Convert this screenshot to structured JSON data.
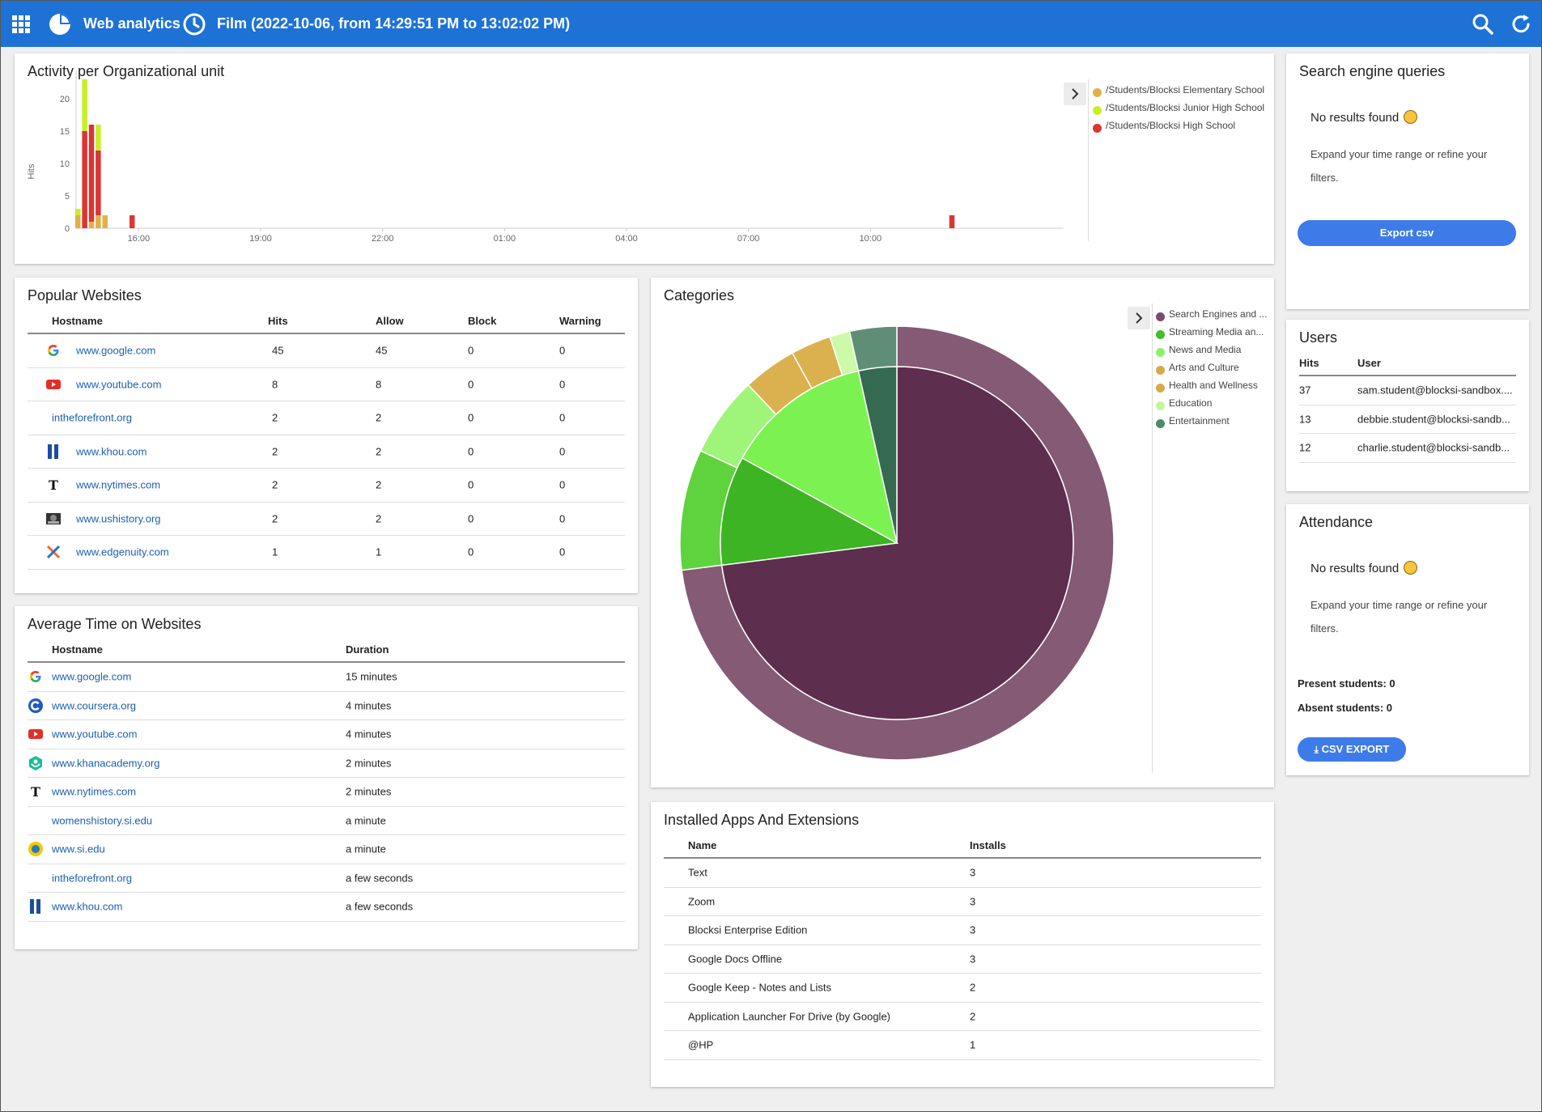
{
  "topbar": {
    "app_title": "Web analytics",
    "range": "Film (2022-10-06, from 14:29:51 PM to 13:02:02 PM)"
  },
  "activity": {
    "title": "Activity per Organizational unit",
    "ylabel": "Hits",
    "legend": [
      {
        "name": "/Students/Blocksi Elementary School",
        "color": "#e2b04a"
      },
      {
        "name": "/Students/Blocksi Junior High School",
        "color": "#c8ef26"
      },
      {
        "name": "/Students/Blocksi High School",
        "color": "#d93636"
      }
    ]
  },
  "chart_data": {
    "type": "bar",
    "stacked": true,
    "yticks": [
      0,
      5,
      10,
      15,
      20
    ],
    "ylim": [
      0,
      23
    ],
    "xtick_labels": [
      "16:00",
      "19:00",
      "22:00",
      "01:00",
      "04:00",
      "07:00",
      "10:00"
    ],
    "x_start": "14:30",
    "series": [
      {
        "name": "/Students/Blocksi Elementary School",
        "color": "#e2b04a",
        "points": [
          [
            "14:30",
            2
          ],
          [
            "14:40",
            0
          ],
          [
            "14:50",
            1
          ],
          [
            "15:00",
            2
          ],
          [
            "15:10",
            2
          ]
        ]
      },
      {
        "name": "/Students/Blocksi High School",
        "color": "#d93636",
        "points": [
          [
            "14:30",
            0
          ],
          [
            "14:40",
            15
          ],
          [
            "14:50",
            15
          ],
          [
            "15:00",
            10
          ],
          [
            "15:10",
            0
          ],
          [
            "15:50",
            2
          ],
          [
            "12:00",
            2
          ]
        ]
      },
      {
        "name": "/Students/Blocksi Junior High School",
        "color": "#c8ef26",
        "points": [
          [
            "14:30",
            1
          ],
          [
            "14:40",
            8
          ],
          [
            "14:50",
            0
          ],
          [
            "15:00",
            4
          ],
          [
            "15:10",
            0
          ]
        ]
      }
    ]
  },
  "search_queries": {
    "title": "Search engine queries",
    "no_results": "No results found",
    "hint": "Expand your time range or refine your filters.",
    "export_label": "Export csv"
  },
  "popular": {
    "title": "Popular Websites",
    "headers": [
      "Hostname",
      "Hits",
      "Allow",
      "Block",
      "Warning"
    ],
    "rows": [
      {
        "host": "www.google.com",
        "icon": "google-icon",
        "hits": "45",
        "allow": "45",
        "block": "0",
        "warning": "0"
      },
      {
        "host": "www.youtube.com",
        "icon": "youtube-icon",
        "hits": "8",
        "allow": "8",
        "block": "0",
        "warning": "0"
      },
      {
        "host": "intheforefront.org",
        "icon": "",
        "hits": "2",
        "allow": "2",
        "block": "0",
        "warning": "0"
      },
      {
        "host": "www.khou.com",
        "icon": "khou-icon",
        "hits": "2",
        "allow": "2",
        "block": "0",
        "warning": "0"
      },
      {
        "host": "www.nytimes.com",
        "icon": "nytimes-icon",
        "hits": "2",
        "allow": "2",
        "block": "0",
        "warning": "0"
      },
      {
        "host": "www.ushistory.org",
        "icon": "ushistory-icon",
        "hits": "2",
        "allow": "2",
        "block": "0",
        "warning": "0"
      },
      {
        "host": "www.edgenuity.com",
        "icon": "edgenuity-icon",
        "hits": "1",
        "allow": "1",
        "block": "0",
        "warning": "0"
      }
    ]
  },
  "categories": {
    "title": "Categories",
    "legend": [
      {
        "name": "Search Engines and ...",
        "color": "#7d4a6e"
      },
      {
        "name": "Streaming Media an...",
        "color": "#3fbf2a"
      },
      {
        "name": "News and Media",
        "color": "#8ef06a"
      },
      {
        "name": "Arts and Culture",
        "color": "#d9a84a"
      },
      {
        "name": "Health and Wellness",
        "color": "#d9a84a"
      },
      {
        "name": "Education",
        "color": "#c2f59c"
      },
      {
        "name": "Entertainment",
        "color": "#4e8a6a"
      }
    ],
    "outer_ring": [
      {
        "value": 73,
        "color": "#845a75"
      },
      {
        "value": 9,
        "color": "#5fd33d"
      },
      {
        "value": 6,
        "color": "#9ff57a"
      },
      {
        "value": 4,
        "color": "#dbb150"
      },
      {
        "value": 3,
        "color": "#dbb150"
      },
      {
        "value": 1.5,
        "color": "#cdfaa8"
      },
      {
        "value": 3.5,
        "color": "#5e8f76"
      }
    ],
    "inner_pie": [
      {
        "value": 73,
        "color": "#5e2e4e"
      },
      {
        "value": 10,
        "color": "#3cb423"
      },
      {
        "value": 13.5,
        "color": "#7cf252"
      },
      {
        "value": 3.5,
        "color": "#356a50"
      }
    ]
  },
  "users": {
    "title": "Users",
    "headers": [
      "Hits",
      "User"
    ],
    "rows": [
      {
        "hits": "37",
        "user": "sam.student@blocksi-sandbox...."
      },
      {
        "hits": "13",
        "user": "debbie.student@blocksi-sandb..."
      },
      {
        "hits": "12",
        "user": "charlie.student@blocksi-sandb..."
      }
    ]
  },
  "attendance": {
    "title": "Attendance",
    "no_results": "No results found",
    "hint": "Expand your time range or refine your filters.",
    "present": "Present students: 0",
    "absent": "Absent students: 0",
    "export_label": "CSV EXPORT"
  },
  "avg_time": {
    "title": "Average Time on Websites",
    "headers": [
      "Hostname",
      "Duration"
    ],
    "rows": [
      {
        "host": "www.google.com",
        "icon": "google-icon",
        "duration": "15 minutes"
      },
      {
        "host": "www.coursera.org",
        "icon": "coursera-icon",
        "duration": "4 minutes"
      },
      {
        "host": "www.youtube.com",
        "icon": "youtube-icon",
        "duration": "4 minutes"
      },
      {
        "host": "www.khanacademy.org",
        "icon": "khanacademy-icon",
        "duration": "2 minutes"
      },
      {
        "host": "www.nytimes.com",
        "icon": "nytimes-icon",
        "duration": "2 minutes"
      },
      {
        "host": "womenshistory.si.edu",
        "icon": "",
        "duration": "a minute"
      },
      {
        "host": "www.si.edu",
        "icon": "si-icon",
        "duration": "a minute"
      },
      {
        "host": "intheforefront.org",
        "icon": "",
        "duration": "a few seconds"
      },
      {
        "host": "www.khou.com",
        "icon": "khou-icon",
        "duration": "a few seconds"
      }
    ]
  },
  "apps": {
    "title": "Installed Apps And Extensions",
    "headers": [
      "Name",
      "Installs"
    ],
    "rows": [
      {
        "name": "Text",
        "installs": "3"
      },
      {
        "name": "Zoom",
        "installs": "3"
      },
      {
        "name": "Blocksi Enterprise Edition",
        "installs": "3"
      },
      {
        "name": "Google Docs Offline",
        "installs": "3"
      },
      {
        "name": "Google Keep - Notes and Lists",
        "installs": "2"
      },
      {
        "name": "Application Launcher For Drive (by Google)",
        "installs": "2"
      },
      {
        "name": "@HP",
        "installs": "1"
      }
    ]
  }
}
